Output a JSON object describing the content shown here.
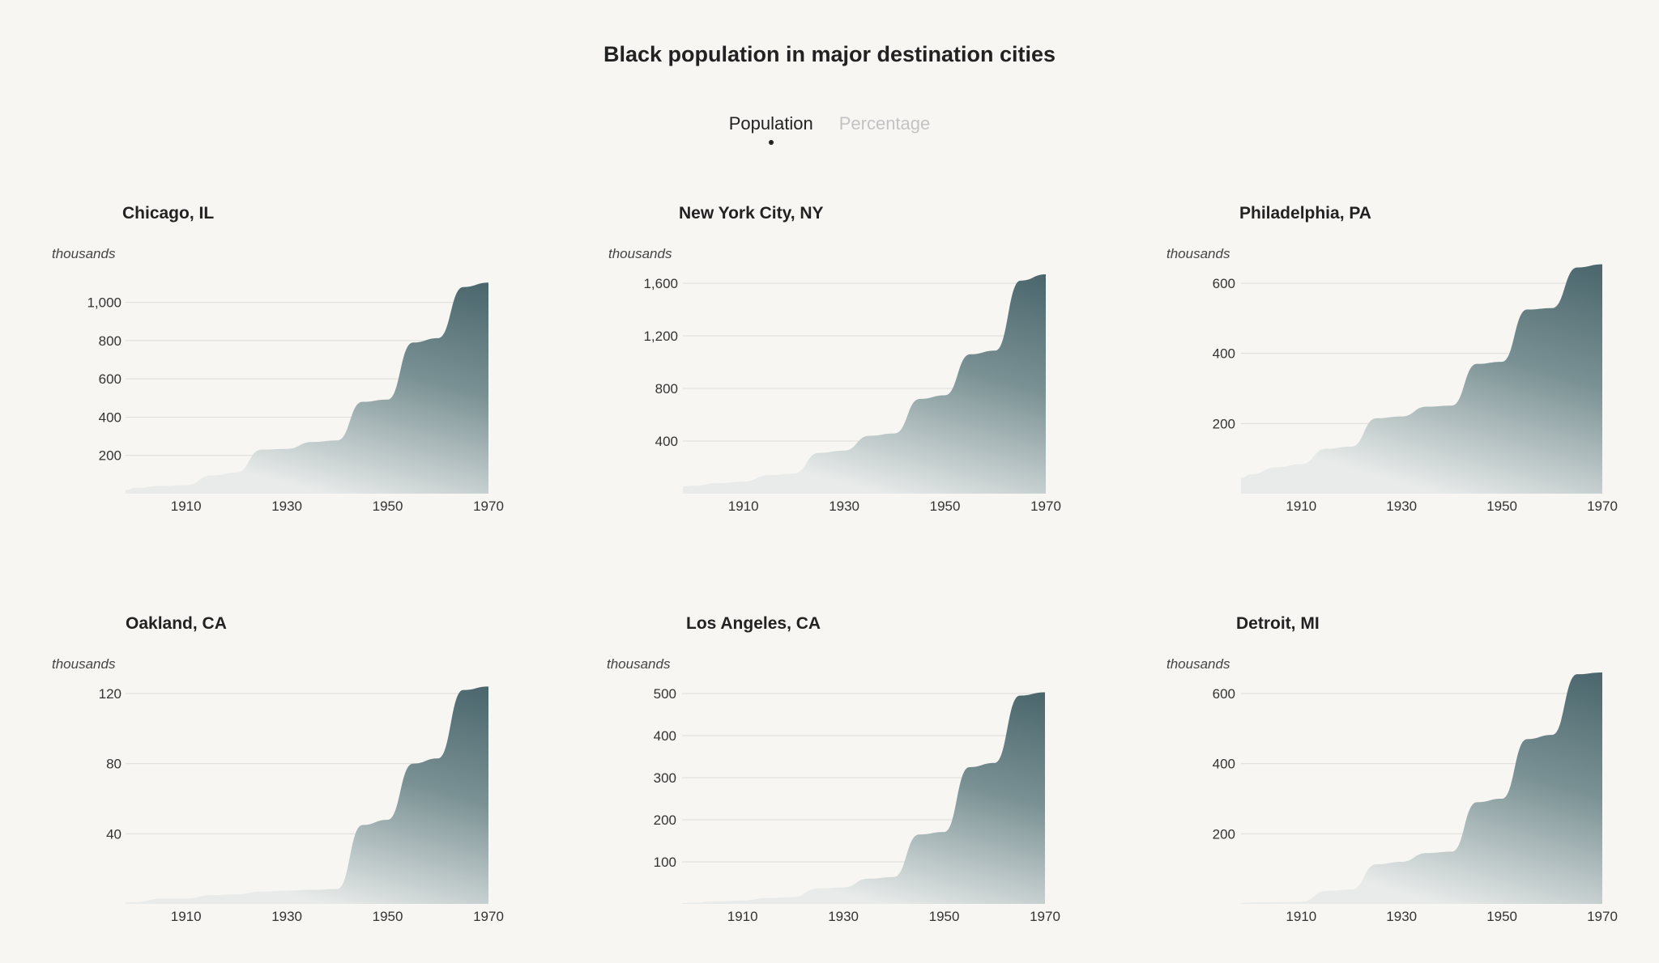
{
  "title": "Black population in major destination cities",
  "toggle": {
    "options": [
      "Population",
      "Percentage"
    ],
    "active_index": 0
  },
  "colors": {
    "fill_top": "#4a666c",
    "fill_bottom": "#e8ebea",
    "background": "#f7f6f3"
  },
  "chart_data": [
    {
      "type": "area",
      "title": "Chicago, IL",
      "ylabel": "thousands",
      "x": [
        1898,
        1900,
        1905,
        1910,
        1915,
        1920,
        1925,
        1930,
        1935,
        1940,
        1945,
        1950,
        1955,
        1960,
        1965,
        1970
      ],
      "values": [
        18,
        30,
        40,
        44,
        95,
        110,
        230,
        234,
        270,
        278,
        480,
        492,
        790,
        813,
        1080,
        1103
      ],
      "xticks": [
        1910,
        1930,
        1950,
        1970
      ],
      "xtick_labels": [
        "1910",
        "1930",
        "1950",
        "1970"
      ],
      "yticks": [
        200,
        400,
        600,
        800,
        1000
      ],
      "ytick_labels": [
        "200",
        "400",
        "600",
        "800",
        "1,000"
      ],
      "xlim": [
        1898,
        1970
      ],
      "ylim": [
        0,
        1100
      ]
    },
    {
      "type": "area",
      "title": "New York City, NY",
      "ylabel": "thousands",
      "x": [
        1898,
        1900,
        1905,
        1910,
        1915,
        1920,
        1925,
        1930,
        1935,
        1940,
        1945,
        1950,
        1955,
        1960,
        1965,
        1970
      ],
      "values": [
        55,
        60,
        80,
        91,
        140,
        152,
        310,
        327,
        440,
        458,
        720,
        748,
        1060,
        1088,
        1620,
        1668
      ],
      "xticks": [
        1910,
        1930,
        1950,
        1970
      ],
      "xtick_labels": [
        "1910",
        "1930",
        "1950",
        "1970"
      ],
      "yticks": [
        400,
        800,
        1200,
        1600
      ],
      "ytick_labels": [
        "400",
        "800",
        "1,200",
        "1,600"
      ],
      "xlim": [
        1898,
        1970
      ],
      "ylim": [
        0,
        1600
      ]
    },
    {
      "type": "area",
      "title": "Philadelphia, PA",
      "ylabel": "thousands",
      "x": [
        1898,
        1900,
        1905,
        1910,
        1915,
        1920,
        1925,
        1930,
        1935,
        1940,
        1945,
        1950,
        1955,
        1960,
        1965,
        1970
      ],
      "values": [
        45,
        55,
        75,
        84,
        128,
        134,
        215,
        220,
        248,
        251,
        370,
        376,
        525,
        529,
        645,
        654
      ],
      "xticks": [
        1910,
        1930,
        1950,
        1970
      ],
      "xtick_labels": [
        "1910",
        "1930",
        "1950",
        "1970"
      ],
      "yticks": [
        200,
        400,
        600
      ],
      "ytick_labels": [
        "200",
        "400",
        "600"
      ],
      "xlim": [
        1898,
        1970
      ],
      "ylim": [
        0,
        600
      ]
    },
    {
      "type": "area",
      "title": "Oakland, CA",
      "ylabel": "thousands",
      "x": [
        1898,
        1900,
        1905,
        1910,
        1915,
        1920,
        1925,
        1930,
        1935,
        1940,
        1945,
        1950,
        1955,
        1960,
        1965,
        1970
      ],
      "values": [
        1,
        1,
        3,
        3,
        5,
        5.5,
        7,
        7.5,
        8,
        8.5,
        45,
        48,
        80,
        83,
        122,
        124
      ],
      "xticks": [
        1910,
        1930,
        1950,
        1970
      ],
      "xtick_labels": [
        "1910",
        "1930",
        "1950",
        "1970"
      ],
      "yticks": [
        40,
        80,
        120
      ],
      "ytick_labels": [
        "40",
        "80",
        "120"
      ],
      "xlim": [
        1898,
        1970
      ],
      "ylim": [
        0,
        120
      ]
    },
    {
      "type": "area",
      "title": "Los Angeles, CA",
      "ylabel": "thousands",
      "x": [
        1898,
        1900,
        1905,
        1910,
        1915,
        1920,
        1925,
        1930,
        1935,
        1940,
        1945,
        1950,
        1955,
        1960,
        1965,
        1970
      ],
      "values": [
        2,
        3,
        6,
        8,
        14,
        16,
        37,
        39,
        60,
        64,
        165,
        171,
        325,
        335,
        495,
        503
      ],
      "xticks": [
        1910,
        1930,
        1950,
        1970
      ],
      "xtick_labels": [
        "1910",
        "1930",
        "1950",
        "1970"
      ],
      "yticks": [
        100,
        200,
        300,
        400,
        500
      ],
      "ytick_labels": [
        "100",
        "200",
        "300",
        "400",
        "500"
      ],
      "xlim": [
        1898,
        1970
      ],
      "ylim": [
        0,
        500
      ]
    },
    {
      "type": "area",
      "title": "Detroit, MI",
      "ylabel": "thousands",
      "x": [
        1898,
        1900,
        1905,
        1910,
        1915,
        1920,
        1925,
        1930,
        1935,
        1940,
        1945,
        1950,
        1955,
        1960,
        1965,
        1970
      ],
      "values": [
        3,
        4,
        5,
        6,
        37,
        41,
        113,
        120,
        145,
        149,
        290,
        300,
        470,
        482,
        655,
        660
      ],
      "xticks": [
        1910,
        1930,
        1950,
        1970
      ],
      "xtick_labels": [
        "1910",
        "1930",
        "1950",
        "1970"
      ],
      "yticks": [
        200,
        400,
        600
      ],
      "ytick_labels": [
        "200",
        "400",
        "600"
      ],
      "xlim": [
        1898,
        1970
      ],
      "ylim": [
        0,
        600
      ]
    }
  ]
}
